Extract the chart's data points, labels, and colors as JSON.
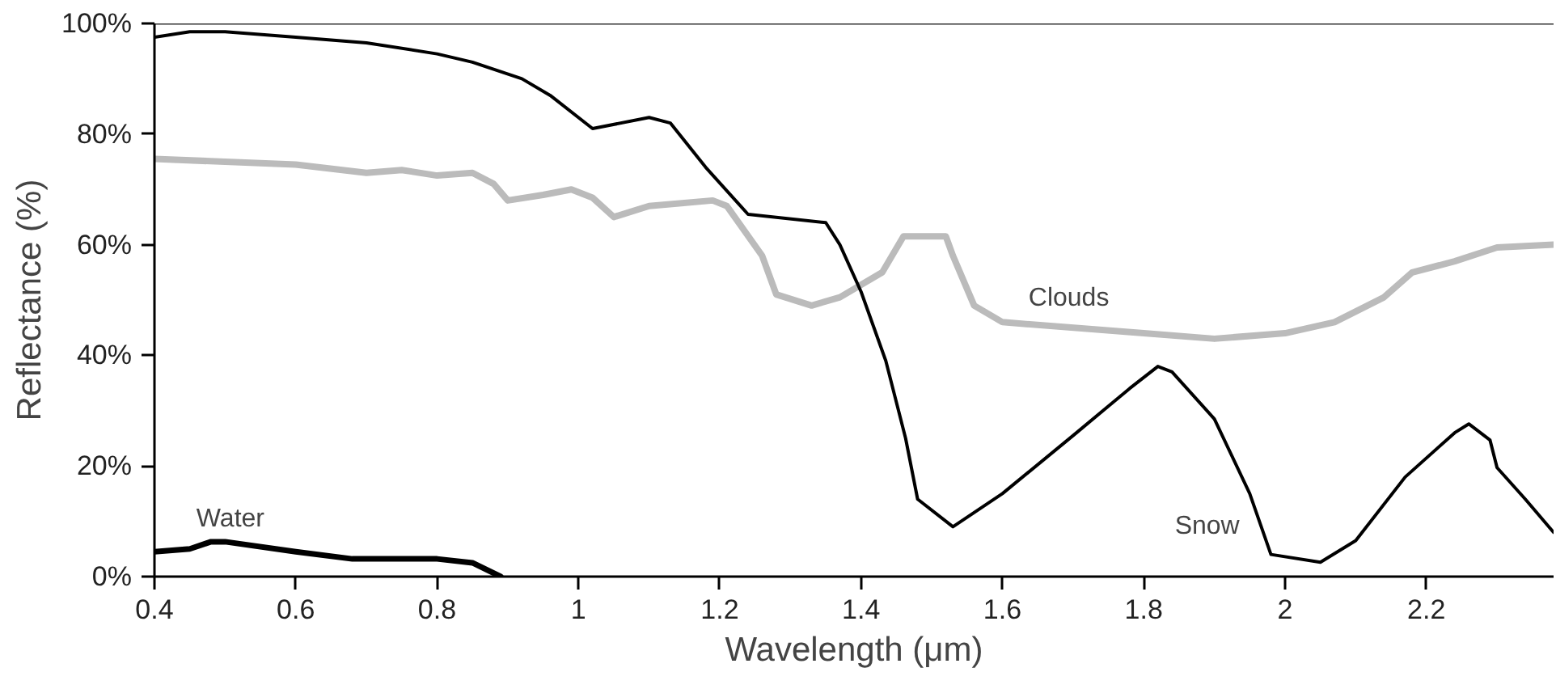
{
  "chart_data": {
    "type": "line",
    "xlabel": "Wavelength (μm)",
    "ylabel": "Reflectance (%)",
    "xlim": [
      0.4,
      2.38
    ],
    "xticks": [
      0.4,
      0.6,
      0.8,
      1.0,
      1.2,
      1.4,
      1.6,
      1.8,
      2.0,
      2.2
    ],
    "ylim": [
      0,
      100
    ],
    "yticks": [
      {
        "value": 0,
        "label": "0%"
      },
      {
        "value": 20,
        "label": "20%"
      },
      {
        "value": 40,
        "label": "40%"
      },
      {
        "value": 60,
        "label": "60%"
      },
      {
        "value": 80,
        "label": "80%"
      },
      {
        "value": 100,
        "label": "100%"
      }
    ],
    "grid": false,
    "legend": false,
    "marker": "none",
    "line_style": "solid",
    "series": [
      {
        "name": "Clouds",
        "color": "#bbbbbb",
        "x": [
          0.4,
          0.5,
          0.6,
          0.7,
          0.75,
          0.8,
          0.85,
          0.88,
          0.9,
          0.95,
          0.99,
          1.02,
          1.05,
          1.1,
          1.19,
          1.21,
          1.26,
          1.28,
          1.33,
          1.37,
          1.43,
          1.46,
          1.52,
          1.53,
          1.56,
          1.6,
          1.8,
          1.9,
          2.0,
          2.07,
          2.14,
          2.18,
          2.24,
          2.3,
          2.38
        ],
        "values": [
          75.5,
          75,
          74.5,
          73,
          73.5,
          72.5,
          73,
          71,
          68,
          69,
          70,
          68.5,
          65,
          67,
          68,
          67,
          58,
          51,
          49,
          50.5,
          55,
          61.5,
          61.5,
          58,
          49,
          46,
          44,
          43,
          44,
          46,
          50.5,
          55,
          57,
          59.5,
          60
        ]
      },
      {
        "name": "Snow",
        "color": "#000000",
        "x": [
          0.4,
          0.45,
          0.5,
          0.6,
          0.7,
          0.8,
          0.85,
          0.92,
          0.96,
          1.02,
          1.1,
          1.13,
          1.18,
          1.24,
          1.35,
          1.37,
          1.4,
          1.435,
          1.463,
          1.48,
          1.53,
          1.6,
          1.7,
          1.78,
          1.82,
          1.84,
          1.9,
          1.95,
          1.98,
          2.05,
          2.1,
          2.17,
          2.24,
          2.26,
          2.29,
          2.3,
          2.34,
          2.38
        ],
        "values": [
          97.5,
          98.5,
          98.5,
          97.5,
          96.5,
          94.5,
          93,
          90,
          87,
          81,
          83,
          82,
          74,
          65.5,
          64,
          60,
          51.5,
          39,
          25,
          14,
          9,
          15,
          25.5,
          34,
          38,
          37,
          28.5,
          15,
          4,
          2.6,
          6.5,
          18,
          26,
          27.6,
          24.7,
          19.7,
          14,
          8
        ]
      },
      {
        "name": "Water",
        "color": "#000000",
        "x": [
          0.4,
          0.45,
          0.48,
          0.5,
          0.6,
          0.68,
          0.8,
          0.85,
          0.89
        ],
        "values": [
          4.5,
          5,
          6.3,
          6.3,
          4.5,
          3.2,
          3.2,
          2.5,
          0
        ]
      }
    ]
  }
}
